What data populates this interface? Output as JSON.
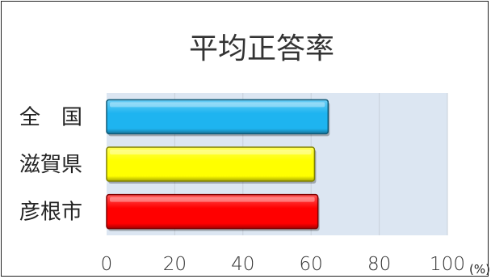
{
  "chart_data": {
    "type": "bar",
    "orientation": "horizontal",
    "title": "平均正答率",
    "categories": [
      "全　国",
      "滋賀県",
      "彦根市"
    ],
    "values": [
      65,
      61,
      62
    ],
    "bar_colors": [
      "#1EB4F0",
      "#FFFF00",
      "#FF0000"
    ],
    "plot_background": "#DCE6F2",
    "xlim": [
      0,
      100
    ],
    "xticks": [
      "0",
      "20",
      "40",
      "60",
      "80",
      "100"
    ],
    "x_unit": "(%)",
    "grid": true,
    "legend": "none"
  }
}
